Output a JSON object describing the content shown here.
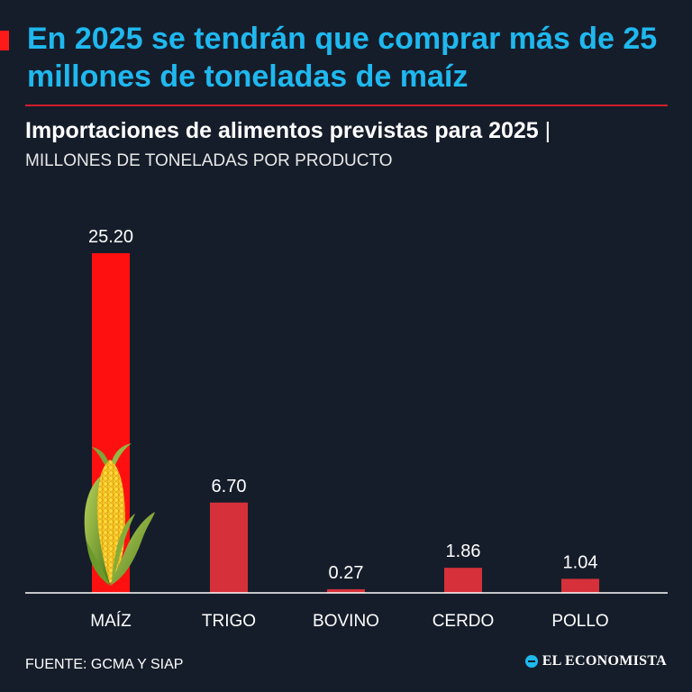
{
  "headline": "En 2025 se tendrán que comprar más de 25 millones de toneladas de maíz",
  "subtitle": "Importaciones de alimentos previstas para 2025",
  "subtitle_separator": "|",
  "units": "MILLONES DE TONELADAS POR PRODUCTO",
  "source": "FUENTE: GCMA Y SIAP",
  "brand": "EL ECONOMISTA",
  "colors": {
    "headline": "#1fb8ef",
    "bar_main": "#ff1010",
    "bar": "#d6313a",
    "background": "#161d2a"
  },
  "chart_data": {
    "type": "bar",
    "categories": [
      "MAÍZ",
      "TRIGO",
      "BOVINO",
      "CERDO",
      "POLLO"
    ],
    "values": [
      25.2,
      6.7,
      0.27,
      1.86,
      1.04
    ],
    "value_labels": [
      "25.20",
      "6.70",
      "0.27",
      "1.86",
      "1.04"
    ],
    "ylim": [
      0,
      25.2
    ],
    "grid": false,
    "legend": "none",
    "icons": [
      "corn-icon"
    ]
  }
}
